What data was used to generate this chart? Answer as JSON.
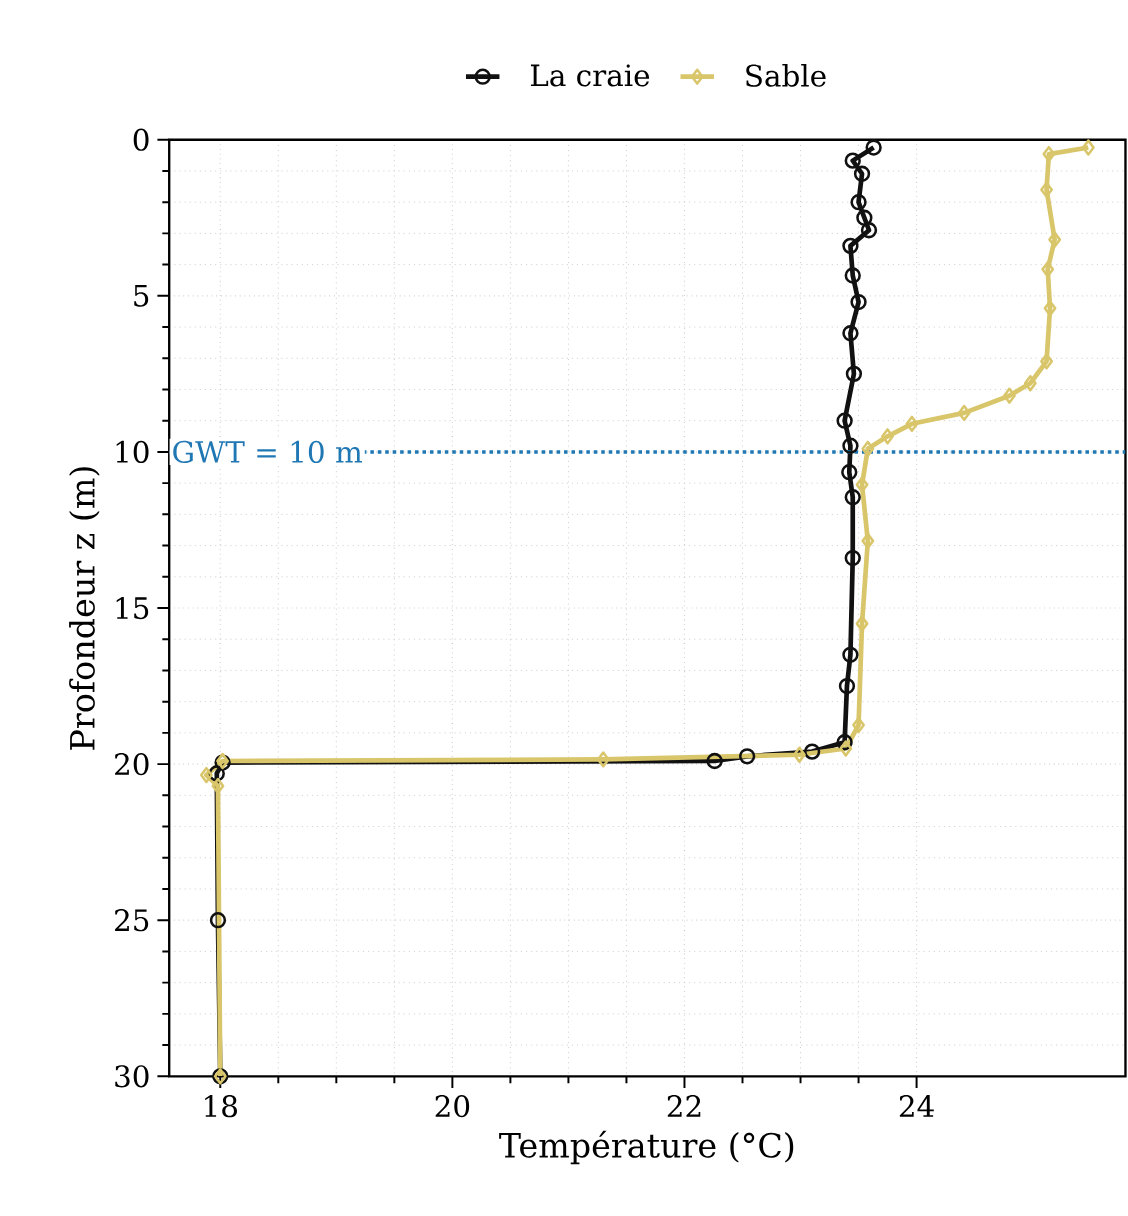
{
  "chart_data": {
    "type": "line",
    "xlabel": "Température (°C)",
    "ylabel": "Profondeur z (m)",
    "xlim": [
      17.56,
      25.8
    ],
    "ylim": [
      30,
      0
    ],
    "xticks": [
      18,
      20,
      22,
      24
    ],
    "yticks": [
      0,
      5,
      10,
      15,
      20,
      25,
      30
    ],
    "grid": true,
    "legend": "top",
    "line_style": "solid",
    "ref_lines": [
      {
        "axis": "y",
        "value": 10,
        "label": "GWT = 10 m",
        "color": "#1f77b4",
        "line_style": "dotted"
      }
    ],
    "series": [
      {
        "name": "La craie",
        "color": "#111111",
        "marker": "circle",
        "x": [
          23.63,
          23.45,
          23.53,
          23.5,
          23.55,
          23.59,
          23.43,
          23.45,
          23.5,
          23.43,
          23.46,
          23.38,
          23.43,
          23.42,
          23.45,
          23.45,
          23.43,
          23.4,
          23.38,
          23.1,
          22.54,
          22.26,
          18.02,
          17.97,
          17.98,
          18.0
        ],
        "values": [
          0.25,
          0.67,
          1.09,
          2.0,
          2.5,
          2.9,
          3.4,
          4.35,
          5.2,
          6.2,
          7.5,
          9.0,
          9.8,
          10.65,
          11.45,
          13.4,
          16.5,
          17.5,
          19.3,
          19.6,
          19.75,
          19.9,
          19.95,
          20.3,
          25,
          30
        ]
      },
      {
        "name": "Sable",
        "color": "#d9c66b",
        "marker": "diamond",
        "x": [
          25.48,
          25.14,
          25.12,
          25.19,
          25.13,
          25.15,
          25.12,
          24.98,
          24.8,
          24.41,
          23.96,
          23.75,
          23.58,
          23.53,
          23.58,
          23.53,
          23.5,
          23.39,
          22.99,
          21.3,
          18.02,
          17.88,
          17.98,
          18.0
        ],
        "values": [
          0.25,
          0.46,
          1.6,
          3.2,
          4.15,
          5.4,
          7.1,
          7.8,
          8.2,
          8.75,
          9.1,
          9.5,
          9.9,
          11.05,
          12.85,
          15.5,
          18.75,
          19.5,
          19.7,
          19.85,
          19.9,
          20.35,
          20.7,
          30
        ]
      }
    ]
  }
}
